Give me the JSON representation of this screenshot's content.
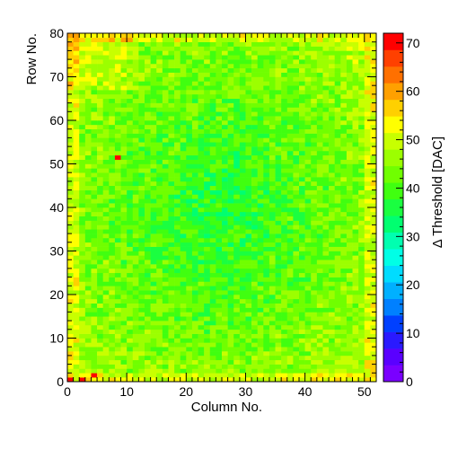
{
  "chart_data": {
    "type": "heatmap",
    "title": "",
    "xlabel": "Column No.",
    "ylabel": "Row No.",
    "zlabel": "Δ Threshold [DAC]",
    "x_range": [
      0,
      52
    ],
    "y_range": [
      0,
      80
    ],
    "z_range": [
      0,
      72
    ],
    "x_ticks": [
      0,
      10,
      20,
      30,
      40,
      50
    ],
    "y_ticks": [
      0,
      10,
      20,
      30,
      40,
      50,
      60,
      70,
      80
    ],
    "z_ticks": [
      0,
      10,
      20,
      30,
      40,
      50,
      60,
      70
    ],
    "n_columns": 52,
    "n_rows": 80,
    "value_description": "per-pixel values mostly 38-48; higher (~48-55) near borders and top-left corner, lower (~33-38) in center",
    "hot_pixels": [
      {
        "column": 8,
        "row": 51,
        "value": 70
      },
      {
        "column": 0,
        "row": 0,
        "value": 70
      },
      {
        "column": 2,
        "row": 0,
        "value": 70
      },
      {
        "column": 4,
        "row": 1,
        "value": 70
      }
    ],
    "palette": [
      "#7a00ff",
      "#5a00ff",
      "#2a1aff",
      "#0040ff",
      "#0080ff",
      "#00b0ff",
      "#00dcff",
      "#00ffe6",
      "#00ffb0",
      "#00ff70",
      "#1aff40",
      "#40ff10",
      "#70ff00",
      "#9cff00",
      "#c8ff00",
      "#ffff00",
      "#ffd000",
      "#ffa000",
      "#ff7000",
      "#ff4000",
      "#ff0000"
    ]
  }
}
